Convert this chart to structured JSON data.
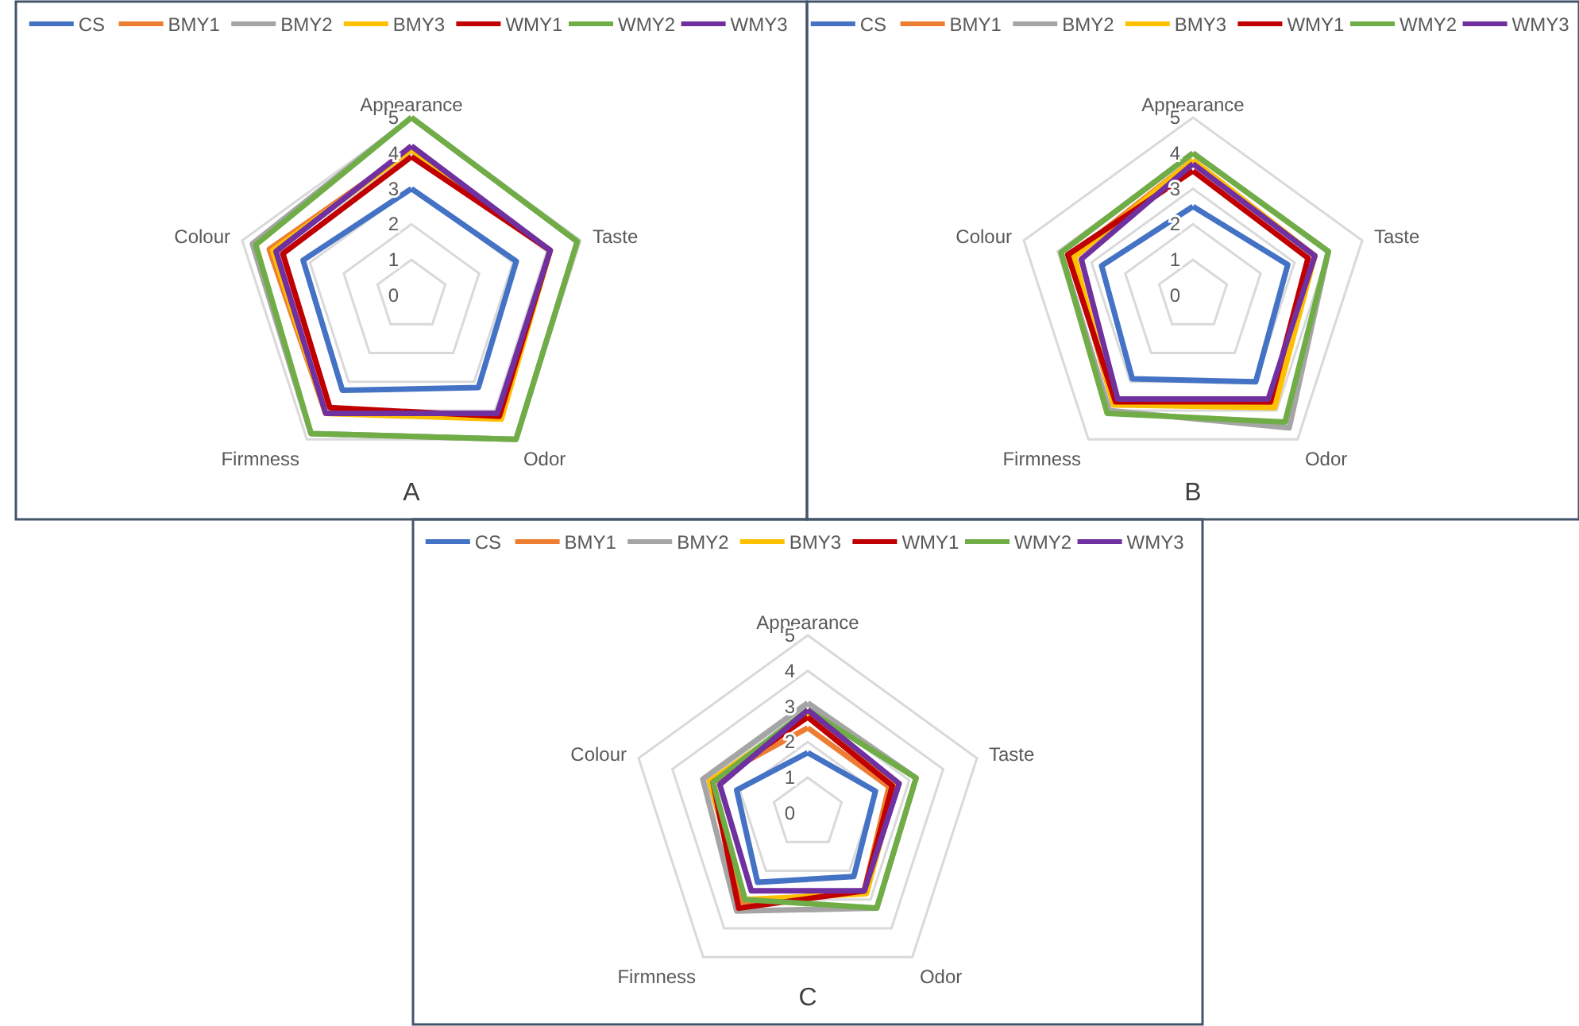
{
  "chart_data": [
    {
      "type": "radar",
      "categories": [
        "Appearance",
        "Taste",
        "Odor",
        "Firmness",
        "Colour"
      ],
      "ylim": [
        0,
        5
      ],
      "yticks": [
        0,
        1,
        2,
        3,
        4,
        5
      ],
      "legend": "top",
      "line_style": "solid",
      "marker": "none",
      "annotations": [
        "A"
      ],
      "series": [
        {
          "name": "CS",
          "color": "#4472c4",
          "values": [
            3,
            3.1,
            3.2,
            3.3,
            3.2
          ]
        },
        {
          "name": "BMY1",
          "color": "#ed7d31",
          "values": [
            4.1,
            4.1,
            4.2,
            4.1,
            4.2
          ]
        },
        {
          "name": "BMY2",
          "color": "#a5a5a5",
          "values": [
            5,
            4.9,
            5,
            4.8,
            4.7
          ]
        },
        {
          "name": "BMY3",
          "color": "#ffc000",
          "values": [
            4.1,
            4.1,
            4.3,
            4.1,
            4.1
          ]
        },
        {
          "name": "WMY1",
          "color": "#c00000",
          "values": [
            3.9,
            4.1,
            4.2,
            3.9,
            3.8
          ]
        },
        {
          "name": "WMY2",
          "color": "#70ad47",
          "values": [
            5,
            4.9,
            5,
            4.8,
            4.6
          ]
        },
        {
          "name": "WMY3",
          "color": "#7030a0",
          "values": [
            4.2,
            4.1,
            4.1,
            4.1,
            4
          ]
        }
      ]
    },
    {
      "type": "radar",
      "categories": [
        "Appearance",
        "Taste",
        "Odor",
        "Firmness",
        "Colour"
      ],
      "ylim": [
        0,
        5
      ],
      "yticks": [
        0,
        1,
        2,
        3,
        4,
        5
      ],
      "legend": "top",
      "line_style": "solid",
      "marker": "none",
      "annotations": [
        "B"
      ],
      "series": [
        {
          "name": "CS",
          "color": "#4472c4",
          "values": [
            2.5,
            2.8,
            3,
            2.9,
            2.7
          ]
        },
        {
          "name": "BMY1",
          "color": "#ed7d31",
          "values": [
            3.8,
            3.6,
            3.8,
            3.8,
            3.6
          ]
        },
        {
          "name": "BMY2",
          "color": "#a5a5a5",
          "values": [
            4,
            4,
            4.6,
            4,
            3.9
          ]
        },
        {
          "name": "BMY3",
          "color": "#ffc000",
          "values": [
            3.8,
            3.6,
            3.9,
            3.8,
            3.5
          ]
        },
        {
          "name": "WMY1",
          "color": "#c00000",
          "values": [
            3.5,
            3.4,
            3.7,
            3.7,
            3.7
          ]
        },
        {
          "name": "WMY2",
          "color": "#70ad47",
          "values": [
            4,
            4,
            4.4,
            4.1,
            3.9
          ]
        },
        {
          "name": "WMY3",
          "color": "#7030a0",
          "values": [
            3.7,
            3.6,
            3.6,
            3.6,
            3.3
          ]
        }
      ]
    },
    {
      "type": "radar",
      "categories": [
        "Appearance",
        "Taste",
        "Odor",
        "Firmness",
        "Colour"
      ],
      "ylim": [
        0,
        5
      ],
      "yticks": [
        0,
        1,
        2,
        3,
        4,
        5
      ],
      "legend": "top",
      "line_style": "solid",
      "marker": "none",
      "annotations": [
        "C"
      ],
      "series": [
        {
          "name": "CS",
          "color": "#4472c4",
          "values": [
            1.7,
            2,
            2.2,
            2.4,
            2.1
          ]
        },
        {
          "name": "BMY1",
          "color": "#ed7d31",
          "values": [
            2.4,
            2.4,
            2.7,
            3.1,
            2.9
          ]
        },
        {
          "name": "BMY2",
          "color": "#a5a5a5",
          "values": [
            3.1,
            3.2,
            3.3,
            3.4,
            3.1
          ]
        },
        {
          "name": "BMY3",
          "color": "#ffc000",
          "values": [
            2.8,
            2.6,
            2.8,
            3,
            2.9
          ]
        },
        {
          "name": "WMY1",
          "color": "#c00000",
          "values": [
            2.7,
            2.5,
            2.7,
            3.3,
            2.8
          ]
        },
        {
          "name": "WMY2",
          "color": "#70ad47",
          "values": [
            2.9,
            3.2,
            3.3,
            3,
            2.8
          ]
        },
        {
          "name": "WMY3",
          "color": "#7030a0",
          "values": [
            2.9,
            2.7,
            2.7,
            2.7,
            2.6
          ]
        }
      ]
    }
  ]
}
